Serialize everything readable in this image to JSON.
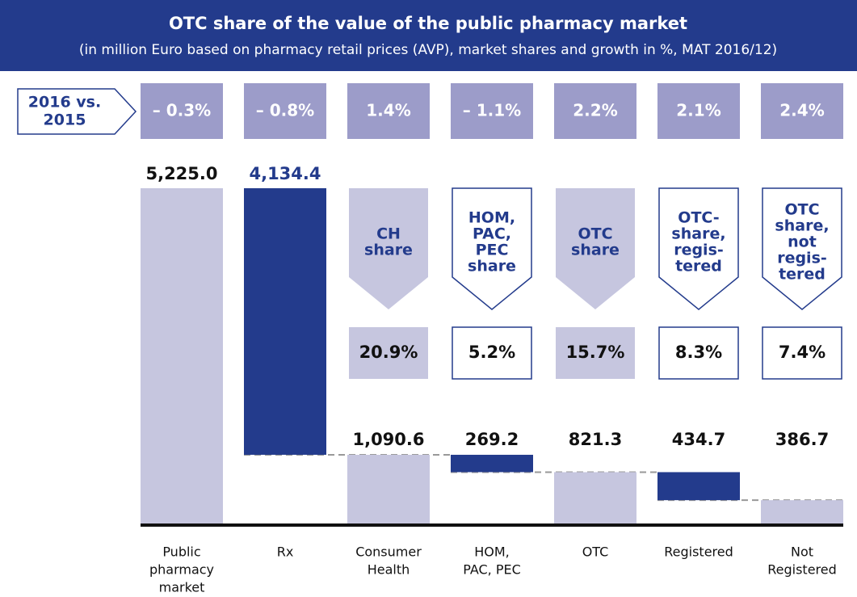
{
  "chart_data": {
    "type": "waterfall",
    "title": "OTC share of the value of the public pharmacy market",
    "subtitle": "(in million Euro based on pharmacy retail prices (AVP), market shares and growth in %, MAT 2016/12)",
    "categories": [
      [
        "Public",
        "pharmacy",
        "market"
      ],
      [
        "Rx"
      ],
      [
        "Consumer",
        "Health"
      ],
      [
        "HOM,",
        "PAC, PEC"
      ],
      [
        "OTC"
      ],
      [
        "Registered"
      ],
      [
        "Not",
        "Registered"
      ]
    ],
    "values": [
      5225.0,
      4134.4,
      1090.6,
      269.2,
      821.3,
      434.7,
      386.7
    ],
    "value_labels": [
      "5,225.0",
      "4,134.4",
      "1,090.6",
      "269.2",
      "821.3",
      "434.7",
      "386.7"
    ],
    "measure": [
      "absolute",
      "relative",
      "absolute",
      "relative",
      "absolute",
      "relative",
      "absolute"
    ],
    "colors": {
      "absolute": "#c6c6df",
      "relative": "#233b8c"
    },
    "ylim": [
      0,
      5225
    ],
    "growth": {
      "label": [
        "2016 vs.",
        "2015"
      ],
      "values": [
        -0.3,
        -0.8,
        1.4,
        -1.1,
        2.2,
        2.1,
        2.4
      ],
      "value_labels": [
        "– 0.3%",
        "– 0.8%",
        "1.4%",
        "– 1.1%",
        "2.2%",
        "2.1%",
        "2.4%"
      ]
    },
    "shares": [
      {
        "column": 2,
        "label": [
          "CH",
          "share"
        ],
        "value": 20.9,
        "value_label": "20.9%",
        "style": "filled"
      },
      {
        "column": 3,
        "label": [
          "HOM,",
          "PAC,",
          "PEC",
          "share"
        ],
        "value": 5.2,
        "value_label": "5.2%",
        "style": "outline"
      },
      {
        "column": 4,
        "label": [
          "OTC",
          "share"
        ],
        "value": 15.7,
        "value_label": "15.7%",
        "style": "filled"
      },
      {
        "column": 5,
        "label": [
          "OTC-",
          "share,",
          "regis-",
          "tered"
        ],
        "value": 8.3,
        "value_label": "8.3%",
        "style": "outline"
      },
      {
        "column": 6,
        "label": [
          "OTC",
          "share,",
          "not",
          "regis-",
          "tered"
        ],
        "value": 7.4,
        "value_label": "7.4%",
        "style": "outline"
      }
    ]
  }
}
